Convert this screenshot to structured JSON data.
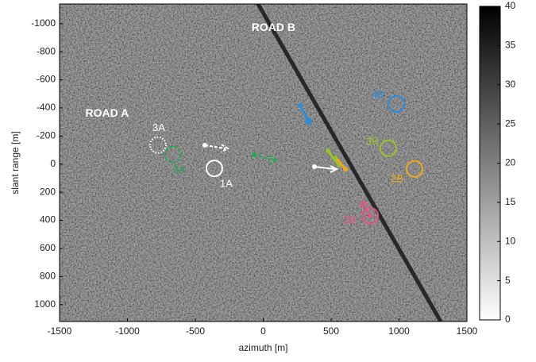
{
  "chart_data": {
    "type": "image",
    "xlabel": "azimuth [m]",
    "ylabel": "slant range [m]",
    "xlim": [
      -1500,
      1500
    ],
    "xticks": [
      -1500,
      -1000,
      -500,
      0,
      500,
      1000,
      1500
    ],
    "ylim": [
      -1140,
      1120
    ],
    "yticks": [
      -1000,
      -800,
      -600,
      -400,
      -200,
      0,
      200,
      400,
      600,
      800,
      1000
    ],
    "clim": [
      0,
      40
    ],
    "cticks": [
      0,
      5,
      10,
      15,
      20,
      25,
      30,
      35,
      40
    ],
    "roads": [
      {
        "label": "ROAD A",
        "x": -1150,
        "y": -360
      },
      {
        "label": "ROAD B",
        "x": 75,
        "y": -970
      }
    ],
    "targets": [
      {
        "label": "1A",
        "x": -360,
        "y": 30,
        "color": "#ffffff",
        "style": "solid"
      },
      {
        "label": "2A",
        "x": -664,
        "y": -68,
        "color": "#1faa55",
        "style": "dashed"
      },
      {
        "label": "3A",
        "x": -775,
        "y": -136,
        "color": "#ffffff",
        "style": "dotted"
      },
      {
        "label": "1B",
        "x": 787,
        "y": 367,
        "color": "#e8508a",
        "style": "solid"
      },
      {
        "label": "2B",
        "x": 1114,
        "y": 34,
        "color": "#f0a818",
        "style": "solid"
      },
      {
        "label": "3B",
        "x": 921,
        "y": -113,
        "color": "#9ac22a",
        "style": "solid"
      },
      {
        "label": "4B",
        "x": 980,
        "y": -429,
        "color": "#2a8ee0",
        "style": "solid"
      }
    ]
  }
}
